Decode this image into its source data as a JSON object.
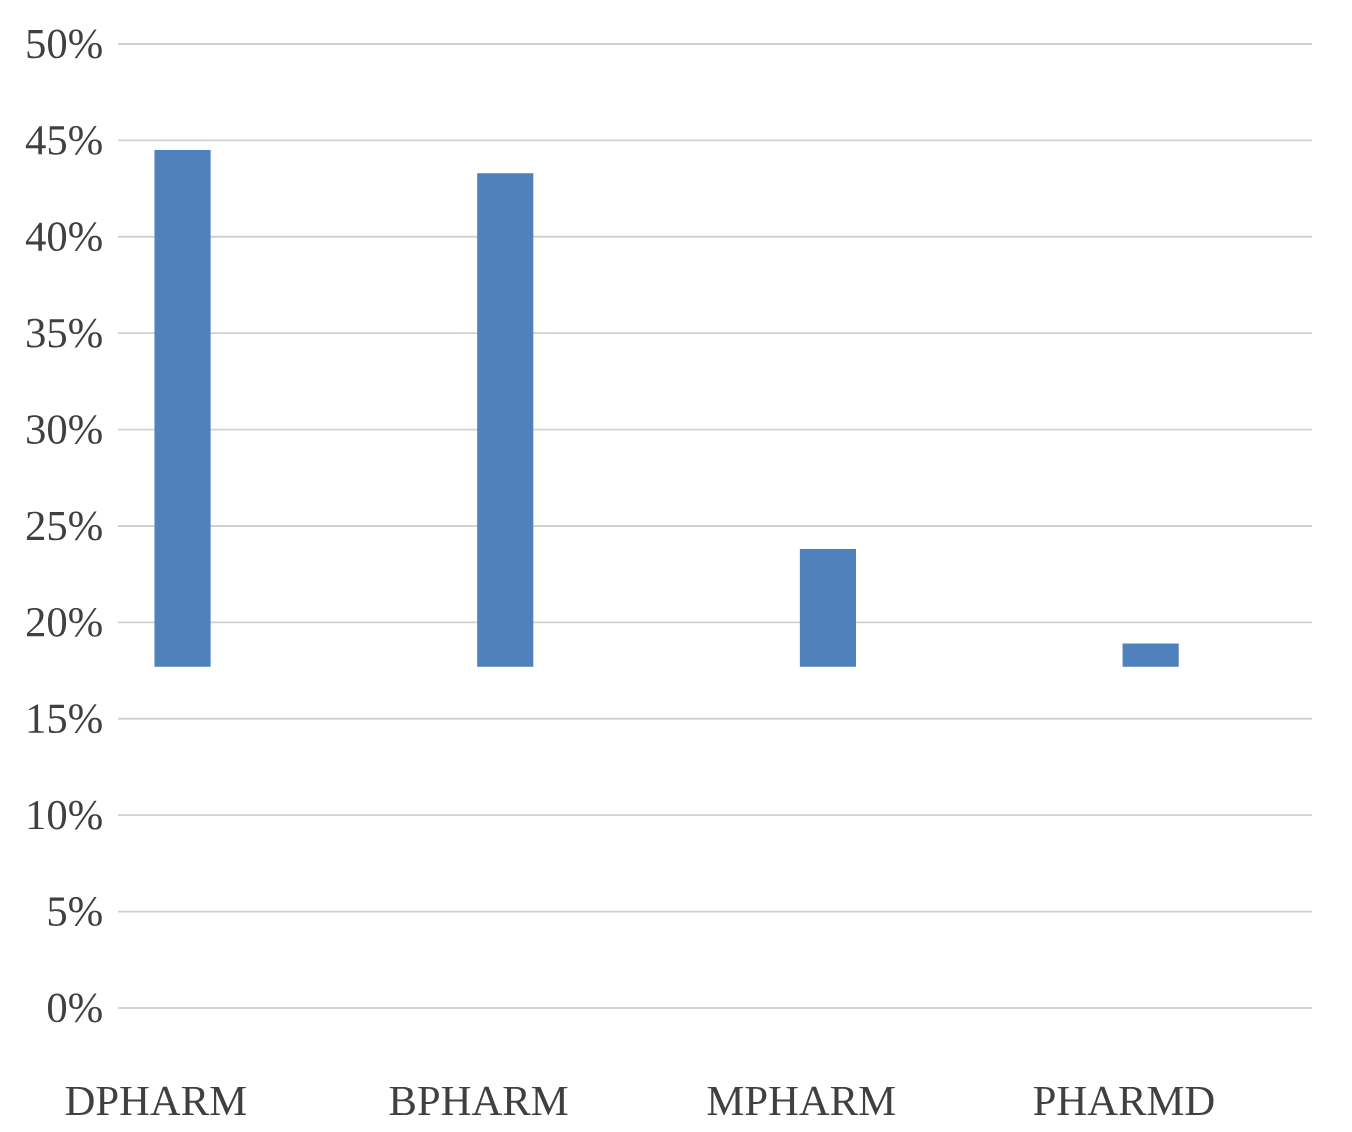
{
  "chart_data": {
    "type": "bar",
    "categories": [
      "DPHARM",
      "BPHARM",
      "MPHARM",
      "PHARMD"
    ],
    "values": [
      26.8,
      25.6,
      6.1,
      1.2
    ],
    "base": [
      17.7,
      17.7,
      17.7,
      17.7
    ],
    "color": "#4f81bd",
    "ylim": [
      0,
      50
    ],
    "yticks": [
      {
        "value": 0,
        "label": "0%"
      },
      {
        "value": 5,
        "label": "5%"
      },
      {
        "value": 10,
        "label": "10%"
      },
      {
        "value": 15,
        "label": "15%"
      },
      {
        "value": 20,
        "label": "20%"
      },
      {
        "value": 25,
        "label": "25%"
      },
      {
        "value": 30,
        "label": "30%"
      },
      {
        "value": 35,
        "label": "35%"
      },
      {
        "value": 40,
        "label": "40%"
      },
      {
        "value": 45,
        "label": "45%"
      },
      {
        "value": 50,
        "label": "50%"
      }
    ],
    "grid": "y"
  }
}
